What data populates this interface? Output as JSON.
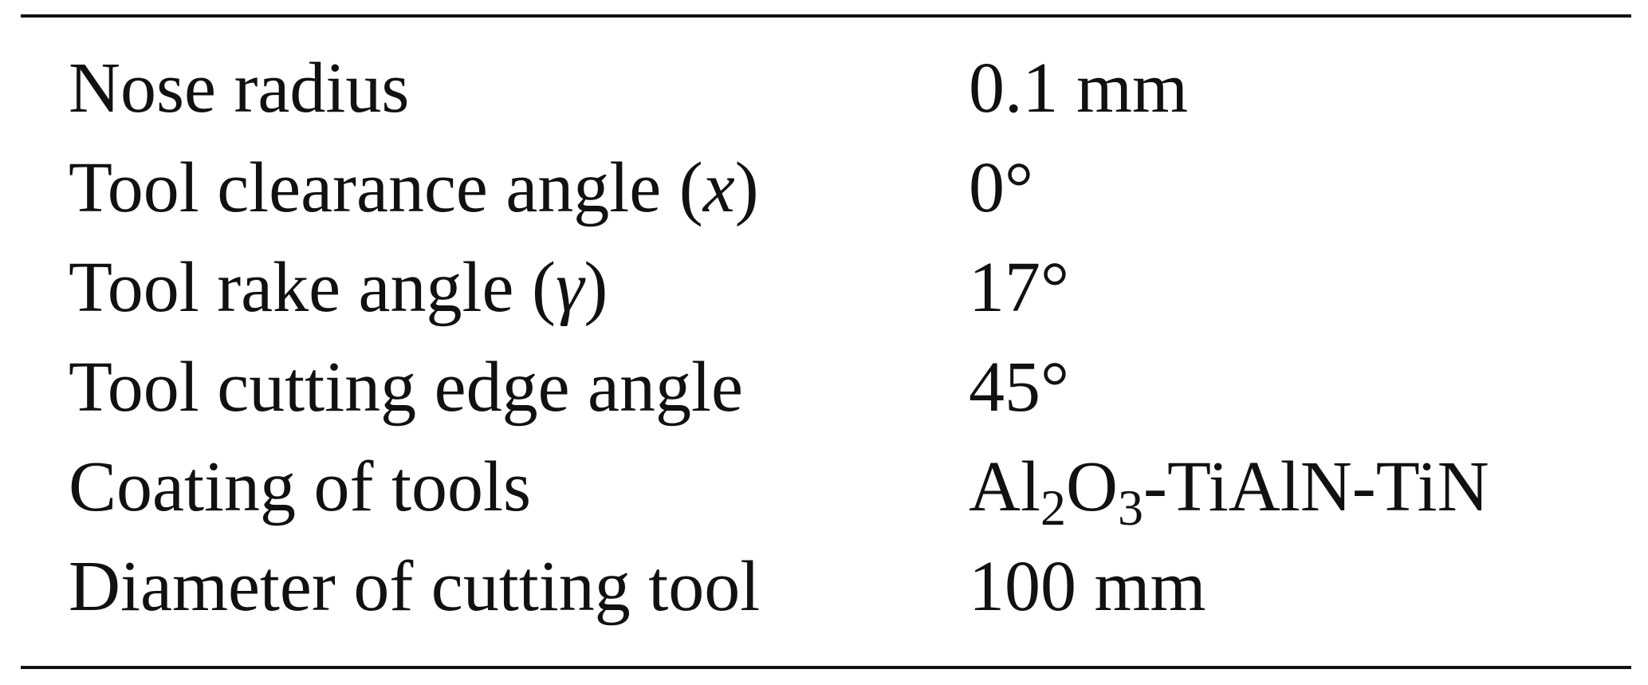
{
  "table": {
    "rows": [
      [
        "Nose radius",
        "0.1 mm"
      ],
      [
        [
          {
            "text": "Tool clearance angle ("
          },
          {
            "text": "x",
            "style": "italic"
          },
          {
            "text": ")"
          }
        ],
        "0°"
      ],
      [
        [
          {
            "text": "Tool rake angle ("
          },
          {
            "text": "γ",
            "style": "italic"
          },
          {
            "text": ")"
          }
        ],
        "17°"
      ],
      [
        "Tool cutting edge angle",
        "45°"
      ],
      [
        "Coating of tools",
        [
          {
            "text": "Al"
          },
          {
            "text": "2",
            "style": "sub"
          },
          {
            "text": "O"
          },
          {
            "text": "3",
            "style": "sub"
          },
          {
            "text": "-TiAlN-TiN"
          }
        ]
      ],
      [
        "Diameter of cutting tool",
        "100 mm"
      ]
    ]
  }
}
